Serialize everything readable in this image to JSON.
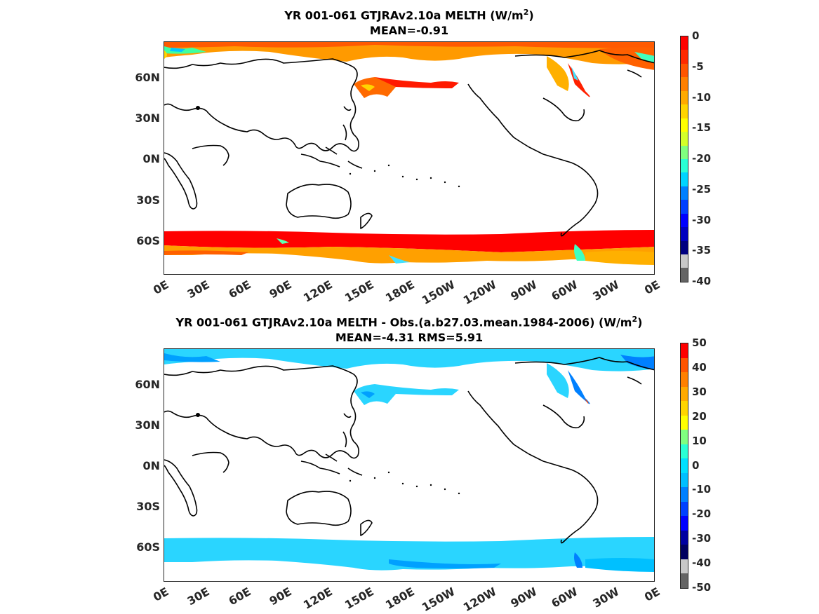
{
  "panel_top": {
    "title_line1_main": "YR 001-061 GTJRAv2.10a  MELTH (W/m",
    "title_line1_sup": "2",
    "title_line1_end": ")",
    "title_line2": "MEAN=-0.91",
    "lat_labels": [
      "60N",
      "30N",
      "0N",
      "30S",
      "60S"
    ],
    "lon_labels": [
      "0E",
      "30E",
      "60E",
      "90E",
      "120E",
      "150E",
      "180E",
      "150W",
      "120W",
      "90W",
      "60W",
      "30W",
      "0E"
    ],
    "colorbar": {
      "labels": [
        "0",
        "-5",
        "-10",
        "-15",
        "-20",
        "-25",
        "-30",
        "-35",
        "-40"
      ],
      "colors_top_to_bottom": [
        "#ff0000",
        "#ff2a00",
        "#ff5500",
        "#ff8000",
        "#ffaa00",
        "#ffd500",
        "#ffff00",
        "#d5ff2a",
        "#80ff80",
        "#2affd5",
        "#00d5ff",
        "#0080ff",
        "#0040ff",
        "#0000ff",
        "#0000c0",
        "#000080",
        "#c8c8c8",
        "#646464"
      ]
    }
  },
  "panel_bottom": {
    "title_line1_main": "YR 001-061 GTJRAv2.10a MELTH - Obs.(a.b27.03.mean.1984-2006) (W/m",
    "title_line1_sup": "2",
    "title_line1_end": ")",
    "title_line2": "MEAN=-4.31 RMS=5.91",
    "lat_labels": [
      "60N",
      "30N",
      "0N",
      "30S",
      "60S"
    ],
    "lon_labels": [
      "0E",
      "30E",
      "60E",
      "90E",
      "120E",
      "150E",
      "180E",
      "150W",
      "120W",
      "90W",
      "60W",
      "30W",
      "0E"
    ],
    "colorbar": {
      "labels": [
        "50",
        "40",
        "30",
        "20",
        "10",
        "0",
        "-10",
        "-20",
        "-30",
        "-40",
        "-50"
      ],
      "colors_top_to_bottom": [
        "#ff0000",
        "#ff5500",
        "#ff8000",
        "#ffaa00",
        "#ffd500",
        "#ffff00",
        "#80ff80",
        "#2affd5",
        "#00e0ff",
        "#00bfff",
        "#0080ff",
        "#0040ff",
        "#0000ff",
        "#0000a0",
        "#000060",
        "#c8c8c8",
        "#646464"
      ]
    }
  }
}
